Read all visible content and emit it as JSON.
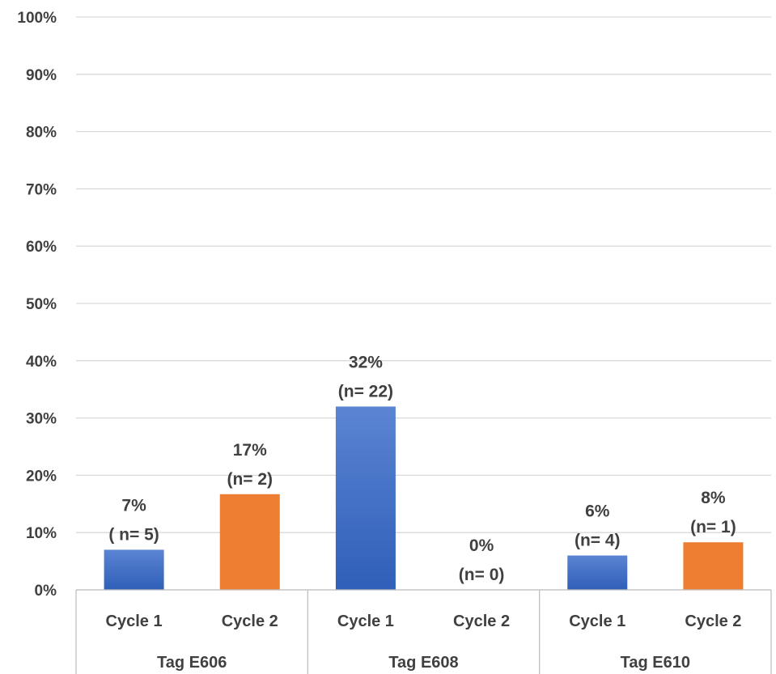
{
  "chart_data": {
    "type": "bar",
    "title": "",
    "xlabel": "",
    "ylabel": "",
    "ylim": [
      0,
      100
    ],
    "yticks": [
      "0%",
      "10%",
      "20%",
      "30%",
      "40%",
      "50%",
      "60%",
      "70%",
      "80%",
      "90%",
      "100%"
    ],
    "grid": true,
    "groups": [
      {
        "label": "Tag E606",
        "bars": [
          {
            "category": "Cycle 1",
            "value": 7,
            "label_pct": "7%",
            "label_n": "( n= 5)",
            "color": "#4472c4"
          },
          {
            "category": "Cycle 2",
            "value": 16.7,
            "label_pct": "17%",
            "label_n": "(n= 2)",
            "color": "#ed7d31"
          }
        ]
      },
      {
        "label": "Tag E608",
        "bars": [
          {
            "category": "Cycle 1",
            "value": 32,
            "label_pct": "32%",
            "label_n": "(n= 22)",
            "color": "#4472c4"
          },
          {
            "category": "Cycle 2",
            "value": 0,
            "label_pct": "0%",
            "label_n": "(n= 0)",
            "color": "#ed7d31"
          }
        ]
      },
      {
        "label": "Tag E610",
        "bars": [
          {
            "category": "Cycle 1",
            "value": 6,
            "label_pct": "6%",
            "label_n": "(n= 4)",
            "color": "#4472c4"
          },
          {
            "category": "Cycle 2",
            "value": 8.3,
            "label_pct": "8%",
            "label_n": "(n= 1)",
            "color": "#ed7d31"
          }
        ]
      }
    ]
  }
}
